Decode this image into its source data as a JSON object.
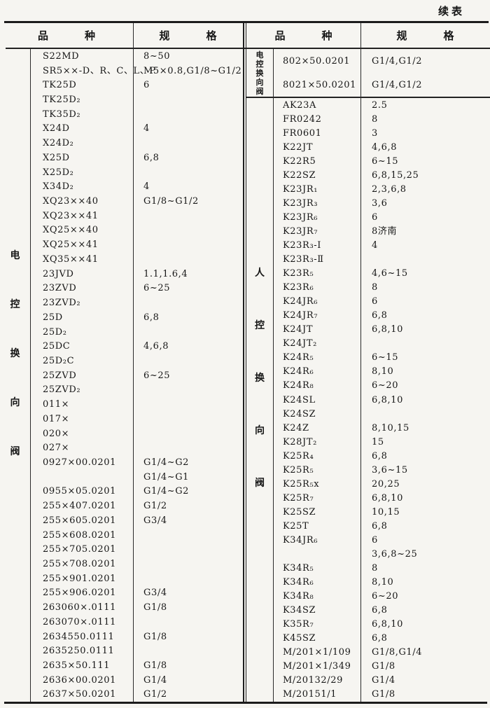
{
  "page": {
    "continued_label": "续表"
  },
  "header": {
    "variety": [
      "品",
      "种"
    ],
    "spec": [
      "规",
      "格"
    ]
  },
  "left_section": {
    "group_label": "电控换向阀",
    "rows": [
      {
        "name": "S22MD",
        "spec": "8~50"
      },
      {
        "name": "SR5××-D、R、C、L、P",
        "spec": "M5×0.8,G1/8~G1/2"
      },
      {
        "name": "TK25D",
        "spec": "6"
      },
      {
        "name": "TK25D₂",
        "spec": ""
      },
      {
        "name": "TK35D₂",
        "spec": ""
      },
      {
        "name": "X24D",
        "spec": "4"
      },
      {
        "name": "X24D₂",
        "spec": ""
      },
      {
        "name": "X25D",
        "spec": "6,8"
      },
      {
        "name": "X25D₂",
        "spec": ""
      },
      {
        "name": "X34D₂",
        "spec": "4"
      },
      {
        "name": "XQ23××40",
        "spec": "G1/8~G1/2"
      },
      {
        "name": "XQ23××41",
        "spec": ""
      },
      {
        "name": "XQ25××40",
        "spec": ""
      },
      {
        "name": "XQ25××41",
        "spec": ""
      },
      {
        "name": "XQ35××41",
        "spec": ""
      },
      {
        "name": "23JVD",
        "spec": "1.1,1.6,4"
      },
      {
        "name": "23ZVD",
        "spec": "6~25"
      },
      {
        "name": "23ZVD₂",
        "spec": ""
      },
      {
        "name": "25D",
        "spec": "6,8"
      },
      {
        "name": "25D₂",
        "spec": ""
      },
      {
        "name": "25DC",
        "spec": "4,6,8"
      },
      {
        "name": "25D₂C",
        "spec": ""
      },
      {
        "name": "25ZVD",
        "spec": "6~25"
      },
      {
        "name": "25ZVD₂",
        "spec": ""
      },
      {
        "name": "011×",
        "spec": ""
      },
      {
        "name": "017×",
        "spec": ""
      },
      {
        "name": "020×",
        "spec": ""
      },
      {
        "name": "027×",
        "spec": ""
      },
      {
        "name": "0927×00.0201",
        "spec": "G1/4~G2"
      },
      {
        "name": "",
        "spec": "G1/4~G1"
      },
      {
        "name": "0955×05.0201",
        "spec": "G1/4~G2"
      },
      {
        "name": "255×407.0201",
        "spec": "G1/2"
      },
      {
        "name": "255×605.0201",
        "spec": "G3/4"
      },
      {
        "name": "255×608.0201",
        "spec": ""
      },
      {
        "name": "255×705.0201",
        "spec": ""
      },
      {
        "name": "255×708.0201",
        "spec": ""
      },
      {
        "name": "255×901.0201",
        "spec": ""
      },
      {
        "name": "255×906.0201",
        "spec": "G3/4"
      },
      {
        "name": "263060×.0111",
        "spec": "G1/8"
      },
      {
        "name": "263070×.0111",
        "spec": ""
      },
      {
        "name": "2634550.0111",
        "spec": "G1/8"
      },
      {
        "name": "2635250.0111",
        "spec": ""
      },
      {
        "name": "2635×50.111",
        "spec": "G1/8"
      },
      {
        "name": "2636×00.0201",
        "spec": "G1/4"
      },
      {
        "name": "2637×50.0201",
        "spec": "G1/2"
      }
    ]
  },
  "right_sections": [
    {
      "group_label": "电控换向阀",
      "rows": [
        {
          "name": "802×50.0201",
          "spec": "G1/4,G1/2"
        },
        {
          "name": "8021×50.0201",
          "spec": "G1/4,G1/2"
        }
      ]
    },
    {
      "group_label": "人控换向阀",
      "rows": [
        {
          "name": "AK23A",
          "spec": "2.5"
        },
        {
          "name": "FR0242",
          "spec": "8"
        },
        {
          "name": "FR0601",
          "spec": "3"
        },
        {
          "name": "K22JT",
          "spec": "4,6,8"
        },
        {
          "name": "K22R5",
          "spec": "6~15"
        },
        {
          "name": "K22SZ",
          "spec": "6,8,15,25"
        },
        {
          "name": "K23JR₁",
          "spec": "2,3,6,8"
        },
        {
          "name": "K23JR₃",
          "spec": "3,6"
        },
        {
          "name": "K23JR₆",
          "spec": "6"
        },
        {
          "name": "K23JR₇",
          "spec": "8济南"
        },
        {
          "name": "K23R₃-Ⅰ",
          "spec": "4"
        },
        {
          "name": "K23R₃-Ⅱ",
          "spec": ""
        },
        {
          "name": "K23R₅",
          "spec": "4,6~15"
        },
        {
          "name": "K23R₆",
          "spec": "8"
        },
        {
          "name": "K24JR₆",
          "spec": "6"
        },
        {
          "name": "K24JR₇",
          "spec": "6,8"
        },
        {
          "name": "K24JT",
          "spec": "6,8,10"
        },
        {
          "name": "K24JT₂",
          "spec": ""
        },
        {
          "name": "K24R₅",
          "spec": "6~15"
        },
        {
          "name": "K24R₆",
          "spec": "8,10"
        },
        {
          "name": "K24R₈",
          "spec": "6~20"
        },
        {
          "name": "K24SL",
          "spec": "6,8,10"
        },
        {
          "name": "K24SZ",
          "spec": ""
        },
        {
          "name": "K24Z",
          "spec": "8,10,15"
        },
        {
          "name": "K28JT₂",
          "spec": "15"
        },
        {
          "name": "K25R₄",
          "spec": "6,8"
        },
        {
          "name": "K25R₅",
          "spec": "3,6~15"
        },
        {
          "name": "K25R₅x",
          "spec": "20,25"
        },
        {
          "name": "K25R₇",
          "spec": "6,8,10"
        },
        {
          "name": "K25SZ",
          "spec": "10,15"
        },
        {
          "name": "K25T",
          "spec": "6,8"
        },
        {
          "name": "K34JR₆",
          "spec": "6"
        },
        {
          "name": "",
          "spec": "3,6,8~25"
        },
        {
          "name": "K34R₅",
          "spec": "8"
        },
        {
          "name": "K34R₆",
          "spec": "8,10"
        },
        {
          "name": "K34R₈",
          "spec": "6~20"
        },
        {
          "name": "K34SZ",
          "spec": "6,8"
        },
        {
          "name": "K35R₇",
          "spec": "6,8,10"
        },
        {
          "name": "K45SZ",
          "spec": "6,8"
        },
        {
          "name": "M/201×1/109",
          "spec": "G1/8,G1/4"
        },
        {
          "name": "M/201×1/349",
          "spec": "G1/8"
        },
        {
          "name": "M/20132/29",
          "spec": "G1/4"
        },
        {
          "name": "M/20151/1",
          "spec": "G1/8"
        }
      ]
    }
  ]
}
